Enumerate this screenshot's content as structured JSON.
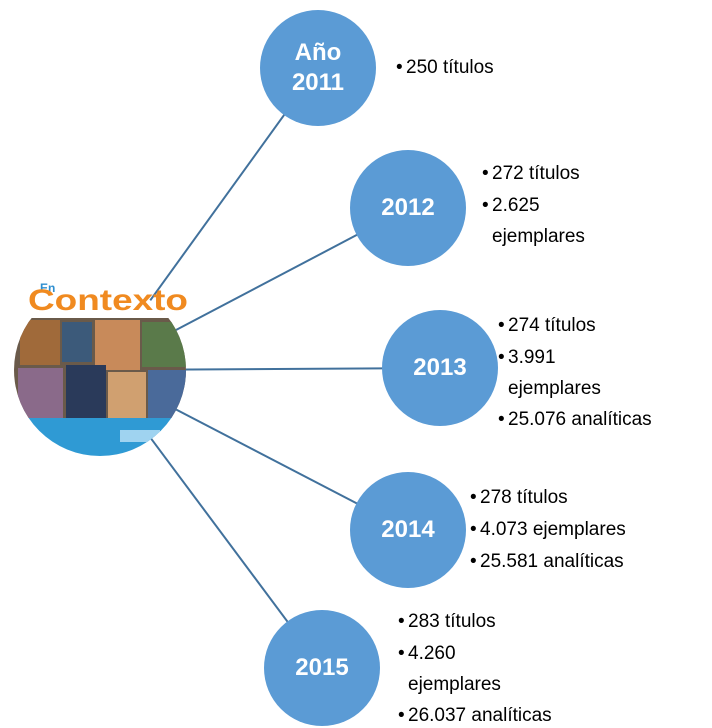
{
  "center": {
    "logo_small": "En",
    "logo": "Contexto"
  },
  "nodes": [
    {
      "label": [
        "Año",
        "2011"
      ],
      "items": [
        [
          "250 títulos"
        ]
      ]
    },
    {
      "label": [
        "2012"
      ],
      "items": [
        [
          "272 títulos"
        ],
        [
          "2.625",
          "ejemplares"
        ]
      ]
    },
    {
      "label": [
        "2013"
      ],
      "items": [
        [
          "274 títulos"
        ],
        [
          "3.991",
          "ejemplares"
        ],
        [
          "25.076 analíticas"
        ]
      ]
    },
    {
      "label": [
        "2014"
      ],
      "items": [
        [
          "278 títulos"
        ],
        [
          "4.073 ejemplares"
        ],
        [
          "25.581 analíticas"
        ]
      ]
    },
    {
      "label": [
        "2015"
      ],
      "items": [
        [
          "283 títulos"
        ],
        [
          "4.260",
          "ejemplares"
        ],
        [
          "26.037 analíticas"
        ]
      ]
    }
  ]
}
